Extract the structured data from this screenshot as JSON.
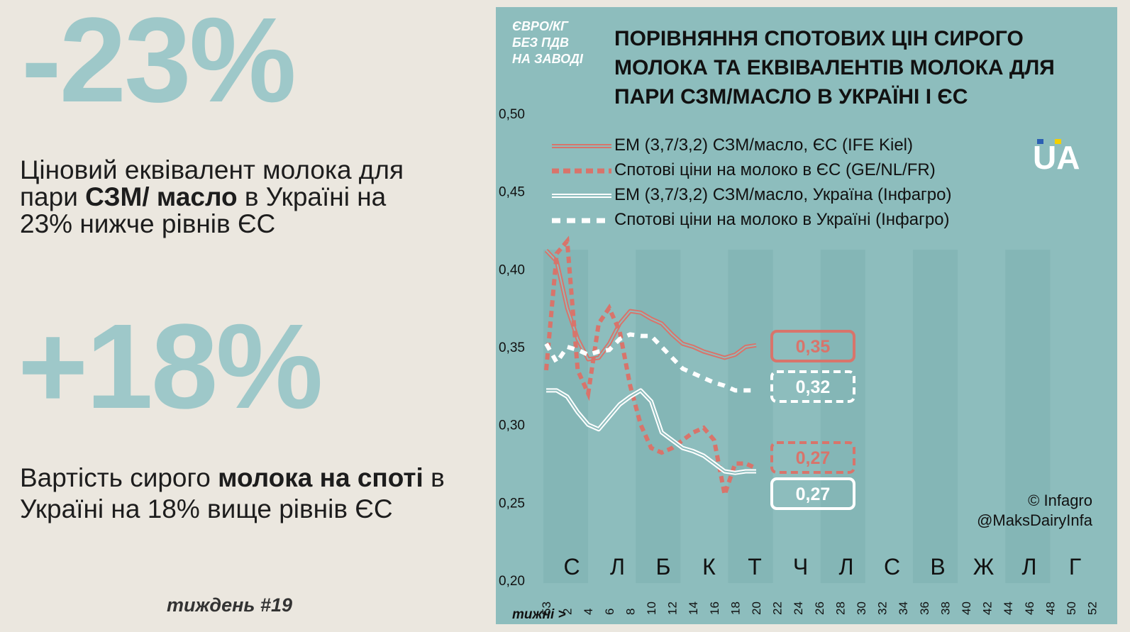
{
  "stats": [
    {
      "value": "-23%",
      "text_parts": [
        "Ціновий еквівалент молока для пари ",
        "СЗМ/ масло",
        " в Україні на 23% нижче рівнів ЄС"
      ]
    },
    {
      "value": "+18%",
      "text_parts": [
        "Вартість сирого ",
        "молока на споті",
        " в Україні на 18% вище рівнів ЄС"
      ]
    }
  ],
  "week_label": "тиждень #19",
  "branding": {
    "logo_text": "UA",
    "credit_line1": "© Infagro",
    "credit_line2": "@MaksDairyInfa"
  },
  "colors": {
    "panel_bg": "#8dbdbd",
    "eu": "#d8746b",
    "ukraine": "#ffffff",
    "big_number": "#9ec8c9",
    "month_band": "#84b6b6"
  },
  "chart_data": {
    "type": "line",
    "title": "ПОРІВНЯННЯ СПОТОВИХ ЦІН СИРОГО МОЛОКА ТА ЕКВІВАЛЕНТІВ МОЛОКА ДЛЯ ПАРИ СЗМ/МАСЛО В УКРАЇНІ І ЄС",
    "ylabel_lines": [
      "ЄВРО/КГ",
      "БЕЗ ПДВ",
      "НА ЗАВОДІ"
    ],
    "xlabel": "тижні >",
    "ylim": [
      0.2,
      0.5
    ],
    "yticks": [
      "0,50",
      "0,45",
      "0,40",
      "0,35",
      "0,30",
      "0,25",
      "0,20"
    ],
    "ytick_values": [
      0.5,
      0.45,
      0.4,
      0.35,
      0.3,
      0.25,
      0.2
    ],
    "xticks": [
      "53",
      "2",
      "4",
      "6",
      "8",
      "10",
      "12",
      "14",
      "16",
      "18",
      "20",
      "22",
      "24",
      "26",
      "28",
      "30",
      "32",
      "34",
      "36",
      "38",
      "40",
      "42",
      "44",
      "46",
      "48",
      "50",
      "52"
    ],
    "months": [
      "С",
      "Л",
      "Б",
      "К",
      "Т",
      "Ч",
      "Л",
      "С",
      "В",
      "Ж",
      "Л",
      "Г"
    ],
    "legend_placement": "top",
    "grid": false,
    "series": [
      {
        "name": "ЕМ (3,7/3,2) СЗМ/масло, ЄС (IFE Kiel)",
        "style": "double",
        "color": "#d8746b",
        "x": [
          0,
          1,
          2,
          3,
          4,
          5,
          6,
          7,
          8,
          9,
          10,
          11,
          12,
          13,
          14,
          15,
          16,
          17,
          18,
          19,
          20
        ],
        "values": [
          0.412,
          0.405,
          0.375,
          0.355,
          0.342,
          0.343,
          0.352,
          0.365,
          0.373,
          0.372,
          0.368,
          0.365,
          0.358,
          0.352,
          0.35,
          0.347,
          0.345,
          0.343,
          0.345,
          0.35,
          0.351
        ],
        "end_label": "0,35"
      },
      {
        "name": "Спотові ціни на молоко в ЄС (GE/NL/FR)",
        "style": "dashed",
        "color": "#d8746b",
        "x": [
          0,
          1,
          2,
          3,
          4,
          5,
          6,
          7,
          8,
          9,
          10,
          11,
          12,
          13,
          14,
          15,
          16,
          17,
          18,
          19,
          20
        ],
        "values": [
          0.335,
          0.41,
          0.418,
          0.335,
          0.32,
          0.365,
          0.375,
          0.36,
          0.325,
          0.3,
          0.285,
          0.282,
          0.285,
          0.29,
          0.295,
          0.298,
          0.29,
          0.255,
          0.275,
          0.275,
          0.272
        ],
        "end_label": "0,27"
      },
      {
        "name": "ЕМ (3,7/3,2) СЗМ/масло, Україна (Інфагро)",
        "style": "double",
        "color": "#ffffff",
        "x": [
          0,
          1,
          2,
          3,
          4,
          5,
          6,
          7,
          8,
          9,
          10,
          11,
          12,
          13,
          14,
          15,
          16,
          17,
          18,
          19,
          20
        ],
        "values": [
          0.322,
          0.322,
          0.318,
          0.308,
          0.3,
          0.297,
          0.305,
          0.313,
          0.318,
          0.322,
          0.315,
          0.295,
          0.29,
          0.285,
          0.283,
          0.28,
          0.275,
          0.27,
          0.269,
          0.27,
          0.27
        ],
        "end_label": "0,27"
      },
      {
        "name": "Спотові ціни на молоко в Україні (Інфагро)",
        "style": "dotted",
        "color": "#ffffff",
        "x": [
          0,
          1,
          2,
          3,
          4,
          5,
          6,
          7,
          8,
          9,
          10,
          11,
          12,
          13,
          14,
          15,
          16,
          17,
          18,
          19,
          20
        ],
        "values": [
          0.352,
          0.34,
          0.35,
          0.348,
          0.345,
          0.347,
          0.348,
          0.355,
          0.358,
          0.357,
          0.357,
          0.35,
          0.343,
          0.336,
          0.333,
          0.33,
          0.327,
          0.325,
          0.322,
          0.322,
          0.322
        ],
        "end_label": "0,32"
      }
    ]
  }
}
